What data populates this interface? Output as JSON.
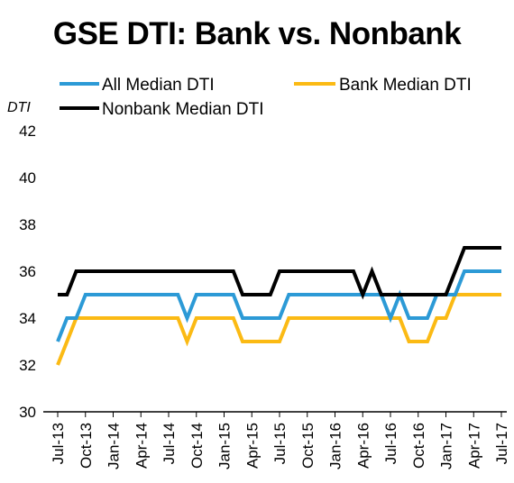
{
  "chart_data": {
    "type": "line",
    "title": "GSE DTI: Bank vs. Nonbank",
    "ylabel": "DTI",
    "xlabel": "",
    "ylim": [
      30,
      42
    ],
    "yticks": [
      30,
      32,
      34,
      36,
      38,
      40,
      42
    ],
    "grid": false,
    "legend_position": "top",
    "x": [
      "Jul-13",
      "Aug-13",
      "Sep-13",
      "Oct-13",
      "Nov-13",
      "Dec-13",
      "Jan-14",
      "Feb-14",
      "Mar-14",
      "Apr-14",
      "May-14",
      "Jun-14",
      "Jul-14",
      "Aug-14",
      "Sep-14",
      "Oct-14",
      "Nov-14",
      "Dec-14",
      "Jan-15",
      "Feb-15",
      "Mar-15",
      "Apr-15",
      "May-15",
      "Jun-15",
      "Jul-15",
      "Aug-15",
      "Sep-15",
      "Oct-15",
      "Nov-15",
      "Dec-15",
      "Jan-16",
      "Feb-16",
      "Mar-16",
      "Apr-16",
      "May-16",
      "Jun-16",
      "Jul-16",
      "Aug-16",
      "Sep-16",
      "Oct-16",
      "Nov-16",
      "Dec-16",
      "Jan-17",
      "Feb-17",
      "Mar-17",
      "Apr-17",
      "May-17",
      "Jun-17",
      "Jul-17"
    ],
    "x_tick_labels": [
      "Jul-13",
      "Oct-13",
      "Jan-14",
      "Apr-14",
      "Jul-14",
      "Oct-14",
      "Jan-15",
      "Apr-15",
      "Jul-15",
      "Oct-15",
      "Jan-16",
      "Apr-16",
      "Jul-16",
      "Oct-16",
      "Jan-17",
      "Apr-17",
      "Jul-17"
    ],
    "series": [
      {
        "name": "All Median DTI",
        "color": "#2C9AD6",
        "values": [
          33,
          34,
          34,
          35,
          35,
          35,
          35,
          35,
          35,
          35,
          35,
          35,
          35,
          35,
          34,
          35,
          35,
          35,
          35,
          35,
          34,
          34,
          34,
          34,
          34,
          35,
          35,
          35,
          35,
          35,
          35,
          35,
          35,
          35,
          35,
          35,
          34,
          35,
          34,
          34,
          34,
          35,
          35,
          35,
          36,
          36,
          36,
          36,
          36
        ]
      },
      {
        "name": "Bank Median DTI",
        "color": "#FBBA14",
        "values": [
          32,
          33,
          34,
          34,
          34,
          34,
          34,
          34,
          34,
          34,
          34,
          34,
          34,
          34,
          33,
          34,
          34,
          34,
          34,
          34,
          33,
          33,
          33,
          33,
          33,
          34,
          34,
          34,
          34,
          34,
          34,
          34,
          34,
          34,
          34,
          34,
          34,
          34,
          33,
          33,
          33,
          34,
          34,
          35,
          35,
          35,
          35,
          35,
          35
        ]
      },
      {
        "name": "Nonbank Median DTI",
        "color": "#000000",
        "values": [
          35,
          35,
          36,
          36,
          36,
          36,
          36,
          36,
          36,
          36,
          36,
          36,
          36,
          36,
          36,
          36,
          36,
          36,
          36,
          36,
          35,
          35,
          35,
          35,
          36,
          36,
          36,
          36,
          36,
          36,
          36,
          36,
          36,
          35,
          36,
          35,
          35,
          35,
          35,
          35,
          35,
          35,
          35,
          36,
          37,
          37,
          37,
          37,
          37
        ]
      }
    ]
  }
}
